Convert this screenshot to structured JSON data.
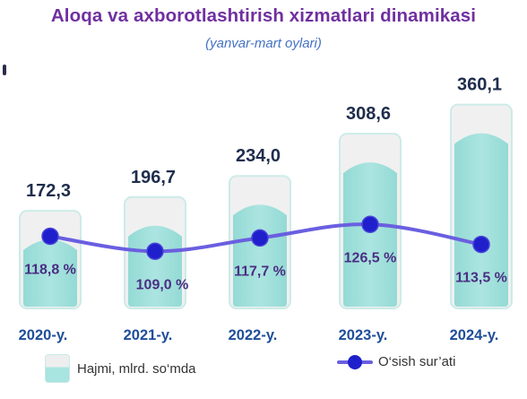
{
  "chart_data": {
    "type": "bar",
    "title": "Aloqa va axborotlashtirish xizmatlari dinamikasi",
    "subtitle": "(yanvar-mart oylari)",
    "categories": [
      "2020-y.",
      "2021-y.",
      "2022-y.",
      "2023-y.",
      "2024-y."
    ],
    "series": [
      {
        "name": "Hajmi, mlrd. so‘mda",
        "type": "bar",
        "values": [
          172.3,
          196.7,
          234.0,
          308.6,
          360.1
        ],
        "labels": [
          "172,3",
          "196,7",
          "234,0",
          "308,6",
          "360,1"
        ]
      },
      {
        "name": "O‘sish sur’ati",
        "type": "line",
        "values": [
          118.8,
          109.0,
          117.7,
          126.5,
          113.5
        ],
        "labels": [
          "118,8 %",
          "109,0 %",
          "117,7 %",
          "126,5 %",
          "113,5 %"
        ]
      }
    ],
    "ylim": [
      0,
      380
    ],
    "growth_ylim": [
      80,
      150
    ],
    "grid": false,
    "legend": "bottom",
    "colors": {
      "bar_top": "#f0f0f0",
      "bar_fill": "#a8e4e0",
      "bar_edge": "#cdebe8",
      "line": "#6a5fe0",
      "marker": "#1f1fcc",
      "value_label": "#1f2d4d",
      "growth_label": "#4b2e83",
      "category_label": "#1f4e9a",
      "title": "#7030a0",
      "subtitle": "#4472c4"
    }
  }
}
